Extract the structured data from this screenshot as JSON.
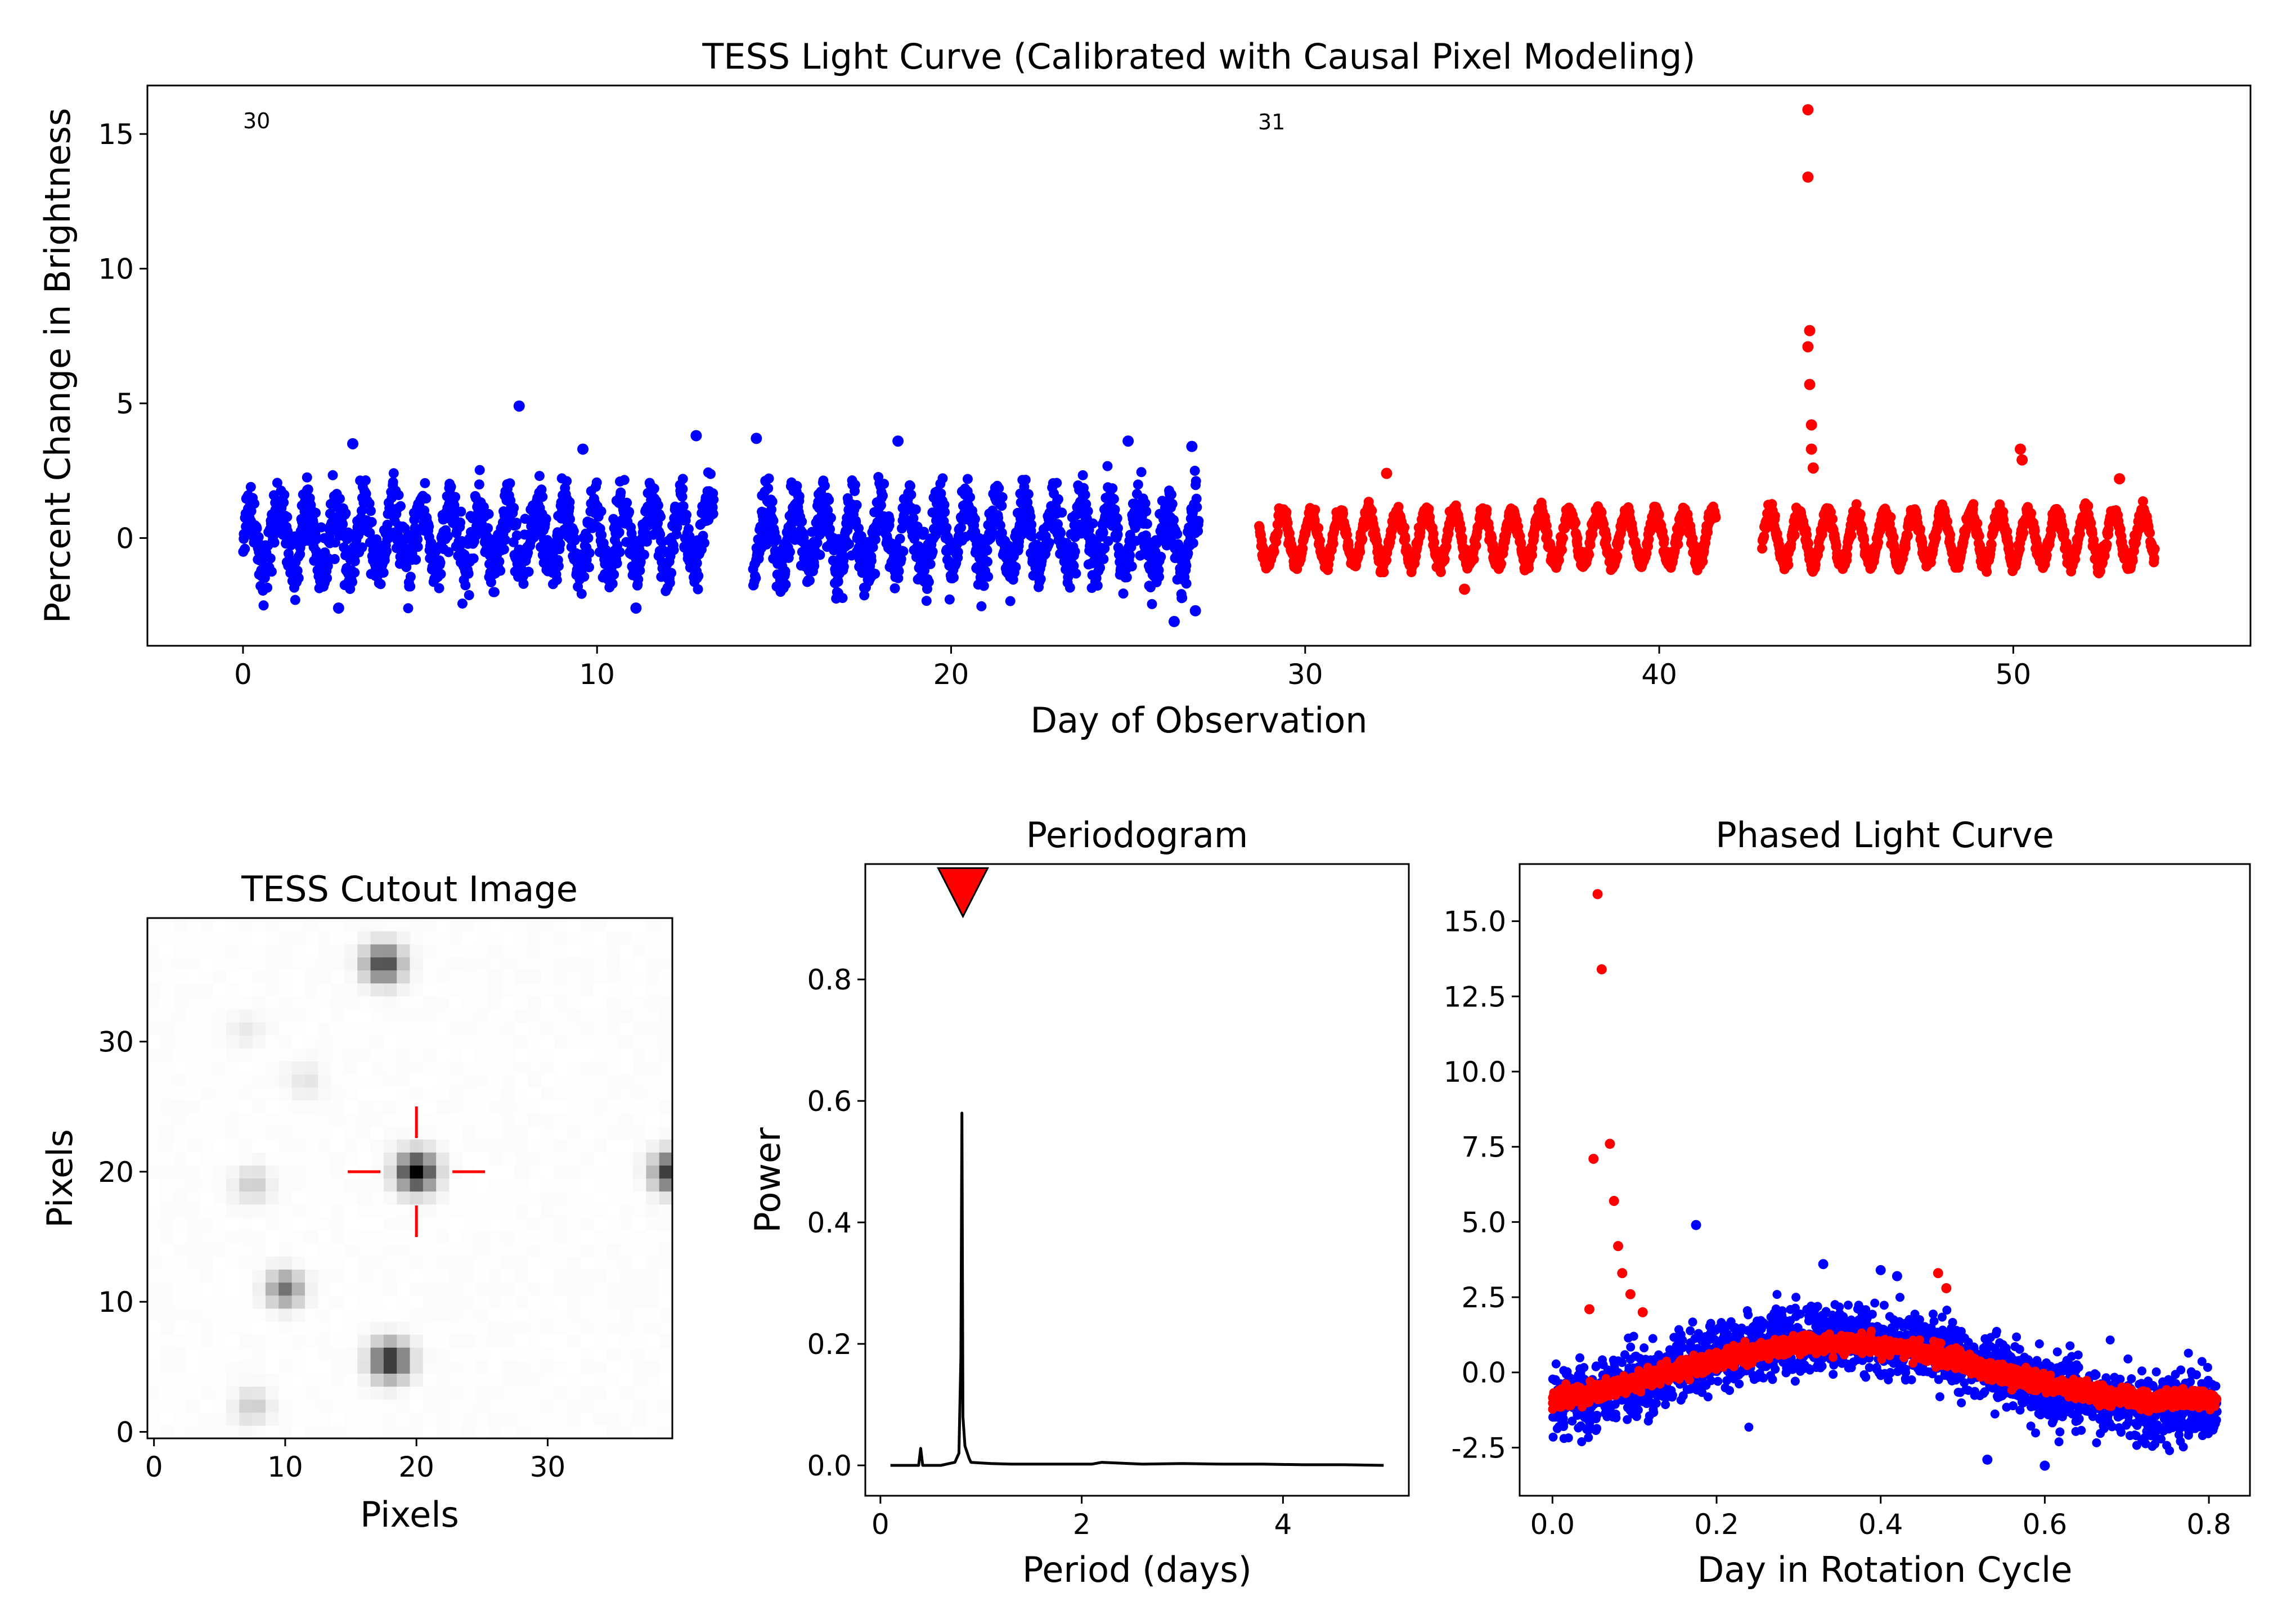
{
  "colors": {
    "sector_a": "#0000ff",
    "sector_b": "#ff0000",
    "periodogram_line": "#000000",
    "marker": "#ff0000",
    "crosshair": "#ff0000"
  },
  "chart_data": [
    {
      "id": "light_curve",
      "type": "scatter",
      "title": "TESS Light Curve (Calibrated with Causal Pixel Modeling)",
      "xlabel": "Day of Observation",
      "ylabel": "Percent Change in Brightness",
      "xlim": [
        -2.7,
        56.7
      ],
      "ylim": [
        -4.0,
        16.8
      ],
      "xticks": [
        0,
        10,
        20,
        30,
        40,
        50
      ],
      "yticks": [
        0,
        5,
        10,
        15
      ],
      "annotations": [
        {
          "text": "30",
          "x": 0.0,
          "y": 15.3
        },
        {
          "text": "31",
          "x": 28.7,
          "y": 15.2
        }
      ],
      "series": [
        {
          "name": "30",
          "color": "#0000ff",
          "x_ranges": [
            [
              0.0,
              13.3
            ],
            [
              14.4,
              27.0
            ]
          ],
          "baseline": 0.0,
          "amplitude": 1.2,
          "noise": 0.55,
          "period_days": 0.81,
          "outliers": [
            [
              7.8,
              4.9
            ],
            [
              3.1,
              3.5
            ],
            [
              9.6,
              3.3
            ],
            [
              12.8,
              3.8
            ],
            [
              14.5,
              3.7
            ],
            [
              18.5,
              3.6
            ],
            [
              25.0,
              3.6
            ],
            [
              26.8,
              3.4
            ],
            [
              2.7,
              -2.6
            ],
            [
              26.3,
              -3.1
            ],
            [
              26.9,
              -2.7
            ],
            [
              11.1,
              -2.6
            ]
          ]
        },
        {
          "name": "31",
          "color": "#ff0000",
          "x_ranges": [
            [
              28.7,
              41.6
            ],
            [
              42.9,
              54.0
            ]
          ],
          "baseline": 0.0,
          "amplitude": 0.95,
          "noise": 0.15,
          "period_days": 0.81,
          "outliers": [
            [
              44.2,
              15.9
            ],
            [
              44.2,
              13.4
            ],
            [
              44.25,
              7.7
            ],
            [
              44.2,
              7.1
            ],
            [
              44.25,
              5.7
            ],
            [
              44.3,
              4.2
            ],
            [
              44.3,
              3.3
            ],
            [
              44.35,
              2.6
            ],
            [
              50.2,
              3.3
            ],
            [
              50.25,
              2.9
            ],
            [
              32.3,
              2.4
            ],
            [
              53.0,
              2.2
            ],
            [
              34.5,
              -1.9
            ]
          ]
        }
      ]
    },
    {
      "id": "cutout",
      "type": "heatmap",
      "title": "TESS Cutout Image",
      "xlabel": "Pixels",
      "ylabel": "Pixels",
      "xlim": [
        -0.5,
        39.5
      ],
      "ylim": [
        -0.5,
        39.5
      ],
      "xticks": [
        0,
        10,
        20,
        30
      ],
      "yticks": [
        0,
        10,
        20,
        30
      ],
      "colormap": "gray_r",
      "target": {
        "x": 20,
        "y": 20
      },
      "sources": [
        {
          "x": 20,
          "y": 20,
          "strength": 1.0,
          "sigma": 1.0
        },
        {
          "x": 17.5,
          "y": 36.0,
          "strength": 0.75,
          "sigma": 1.0
        },
        {
          "x": 18.0,
          "y": 5.5,
          "strength": 0.85,
          "sigma": 1.0
        },
        {
          "x": 10.0,
          "y": 11.0,
          "strength": 0.55,
          "sigma": 0.9
        },
        {
          "x": 39.5,
          "y": 20.0,
          "strength": 0.85,
          "sigma": 1.0
        },
        {
          "x": 7.5,
          "y": 2.0,
          "strength": 0.2,
          "sigma": 0.9
        },
        {
          "x": 7.5,
          "y": 19.0,
          "strength": 0.2,
          "sigma": 0.9
        },
        {
          "x": 11.5,
          "y": 27.0,
          "strength": 0.1,
          "sigma": 0.9
        },
        {
          "x": 7.0,
          "y": 31.0,
          "strength": 0.07,
          "sigma": 0.9
        }
      ]
    },
    {
      "id": "periodogram",
      "type": "line",
      "title": "Periodogram",
      "xlabel": "Period (days)",
      "ylabel": "Power",
      "xlim": [
        -0.15,
        5.25
      ],
      "ylim": [
        -0.05,
        0.99
      ],
      "xticks": [
        0,
        2,
        4
      ],
      "yticks": [
        0.0,
        0.2,
        0.4,
        0.6,
        0.8
      ],
      "x": [
        0.1,
        0.38,
        0.4,
        0.42,
        0.6,
        0.74,
        0.78,
        0.8,
        0.81,
        0.82,
        0.84,
        0.88,
        0.9,
        1.0,
        1.1,
        1.3,
        1.6,
        2.1,
        2.2,
        2.6,
        3.0,
        3.4,
        3.8,
        4.2,
        4.6,
        5.0
      ],
      "y": [
        0.0,
        0.0,
        0.028,
        0.0,
        0.0,
        0.005,
        0.02,
        0.18,
        0.58,
        0.08,
        0.032,
        0.012,
        0.005,
        0.004,
        0.003,
        0.002,
        0.002,
        0.002,
        0.005,
        0.002,
        0.003,
        0.002,
        0.002,
        0.001,
        0.001,
        0.0
      ],
      "marker": {
        "x": 0.82,
        "y": 0.95
      }
    },
    {
      "id": "phased",
      "type": "scatter",
      "title": "Phased Light Curve",
      "xlabel": "Day in Rotation Cycle",
      "ylabel": "",
      "xlim": [
        -0.04,
        0.85
      ],
      "ylim": [
        -4.1,
        16.9
      ],
      "xticks": [
        0.0,
        0.2,
        0.4,
        0.6,
        0.8
      ],
      "yticks": [
        -2.5,
        0.0,
        2.5,
        5.0,
        7.5,
        10.0,
        12.5,
        15.0
      ],
      "period_days": 0.81,
      "peak_phase": 0.345,
      "series": [
        {
          "name": "30",
          "color": "#0000ff",
          "baseline": 0.0,
          "amplitude": 1.2,
          "noise": 0.55,
          "outliers": [
            [
              0.175,
              4.9
            ],
            [
              0.33,
              3.6
            ],
            [
              0.4,
              3.4
            ],
            [
              0.53,
              -2.9
            ],
            [
              0.6,
              -3.1
            ],
            [
              0.42,
              3.2
            ]
          ]
        },
        {
          "name": "31",
          "color": "#ff0000",
          "baseline": 0.0,
          "amplitude": 0.95,
          "noise": 0.15,
          "outliers": [
            [
              0.055,
              15.9
            ],
            [
              0.06,
              13.4
            ],
            [
              0.07,
              7.6
            ],
            [
              0.05,
              7.1
            ],
            [
              0.075,
              5.7
            ],
            [
              0.08,
              4.2
            ],
            [
              0.085,
              3.3
            ],
            [
              0.095,
              2.6
            ],
            [
              0.045,
              2.1
            ],
            [
              0.11,
              2.0
            ],
            [
              0.47,
              3.3
            ],
            [
              0.48,
              2.8
            ]
          ]
        }
      ]
    }
  ]
}
